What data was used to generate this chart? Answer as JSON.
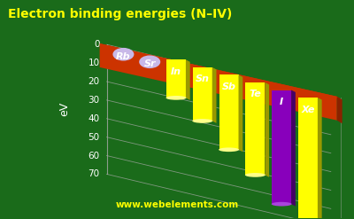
{
  "title": "Electron binding energies (N–IV)",
  "ylabel": "eV",
  "elements": [
    "Rb",
    "Sr",
    "In",
    "Sn",
    "Sb",
    "Te",
    "I",
    "Xe"
  ],
  "values": [
    0,
    0,
    20.6,
    29.0,
    40.4,
    50.0,
    61.6,
    75.0
  ],
  "bar_colors": [
    "#ffff00",
    "#ffff00",
    "#ffff00",
    "#ffff00",
    "#ffff00",
    "#ffff00",
    "#8800bb",
    "#ffff00"
  ],
  "bar_dark_colors": [
    "#999900",
    "#999900",
    "#999900",
    "#999900",
    "#999900",
    "#999900",
    "#440066",
    "#999900"
  ],
  "bar_top_colors": [
    "#ffff88",
    "#ffff88",
    "#ffff88",
    "#ffff88",
    "#ffff88",
    "#ffff88",
    "#aa44dd",
    "#ffff88"
  ],
  "bg_color": "#1a6b1a",
  "platform_color": "#cc3300",
  "platform_dark_color": "#882200",
  "dot_color": "#c8b8e8",
  "title_color": "#ffff00",
  "label_color": "#ffffff",
  "tick_color": "#ffffff",
  "grid_color": "#aaaaaa",
  "watermark": "www.webelements.com",
  "watermark_color": "#ffff00",
  "ylim_max": 80,
  "yticks": [
    0,
    10,
    20,
    30,
    40,
    50,
    60,
    70
  ],
  "title_fontsize": 10,
  "ylabel_fontsize": 9,
  "tick_fontsize": 7.5,
  "elem_fontsize": 8
}
